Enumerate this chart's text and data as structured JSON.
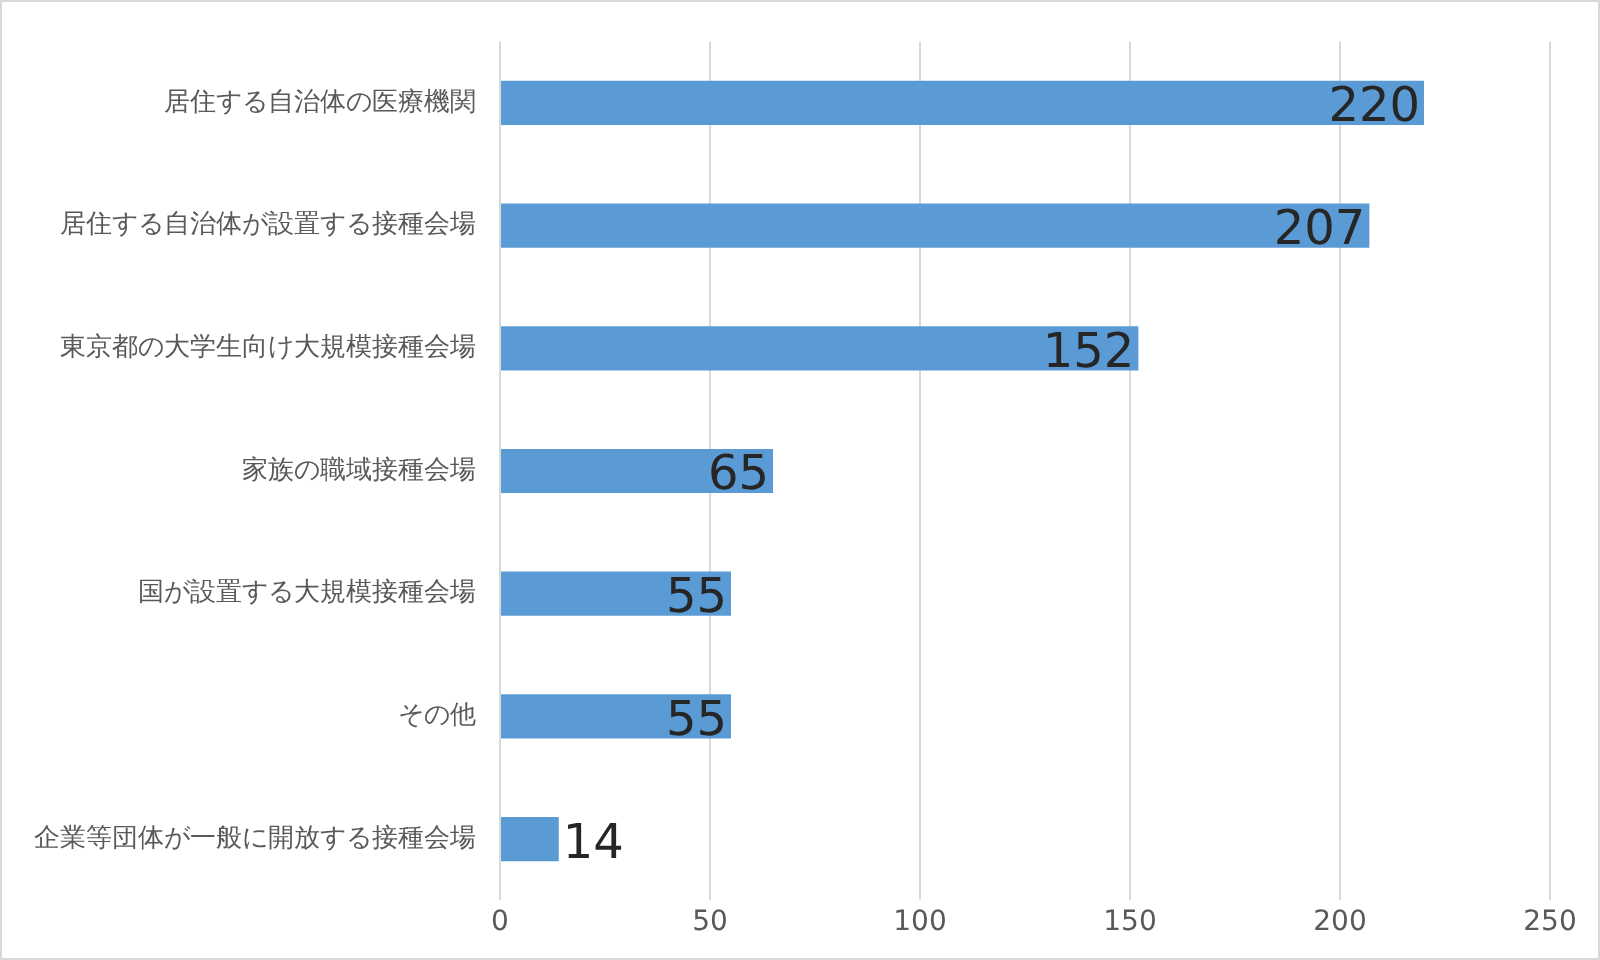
{
  "chart_data": {
    "type": "bar",
    "orientation": "horizontal",
    "categories": [
      "居住する自治体の医療機関",
      "居住する自治体が設置する接種会場",
      "東京都の大学生向け大規模接種会場",
      "家族の職域接種会場",
      "国が設置する大規模接種会場",
      "その他",
      "企業等団体が一般に開放する接種会場"
    ],
    "values": [
      220,
      207,
      152,
      65,
      55,
      55,
      14
    ],
    "color": "#5b9bd5",
    "xlim": [
      0,
      250
    ],
    "xticks": [
      0,
      50,
      100,
      150,
      200,
      250
    ],
    "grid": "x",
    "legend": false,
    "data_labels": true
  }
}
